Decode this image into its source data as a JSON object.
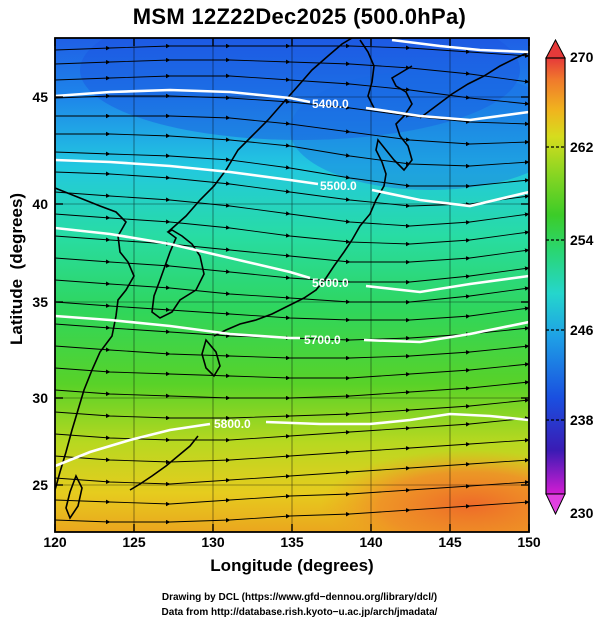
{
  "title": "MSM 12Z22Dec2025 (500.0hPa)",
  "axes": {
    "xlabel": "Longitude (degrees)",
    "ylabel": "Latitude  (degrees)",
    "xticks": [
      "120",
      "125",
      "130",
      "135",
      "140",
      "145",
      "150"
    ],
    "yticks": [
      "25",
      "30",
      "35",
      "40",
      "45"
    ],
    "xlim": [
      120,
      150
    ],
    "ylim": [
      22.4,
      47.6
    ]
  },
  "colorbar": {
    "ticks": [
      "270",
      "262",
      "254",
      "246",
      "238",
      "230"
    ],
    "range": [
      230,
      270
    ],
    "colors": [
      "#d21cd2",
      "#3a1bb4",
      "#1a4fe0",
      "#1ea0e6",
      "#25d6cc",
      "#2ad670",
      "#3ccc28",
      "#8ed622",
      "#d6dc1e",
      "#f0b41e",
      "#f07a2c",
      "#e63a3a"
    ]
  },
  "contours": [
    {
      "label": "5400.0"
    },
    {
      "label": "5500.0"
    },
    {
      "label": "5600.0"
    },
    {
      "label": "5700.0"
    },
    {
      "label": "5800.0"
    }
  ],
  "credits": [
    "Drawing by DCL (https://www.gfd−dennou.org/library/dcl/)",
    "Data from http://database.rish.kyoto−u.ac.jp/arch/jmadata/"
  ]
}
